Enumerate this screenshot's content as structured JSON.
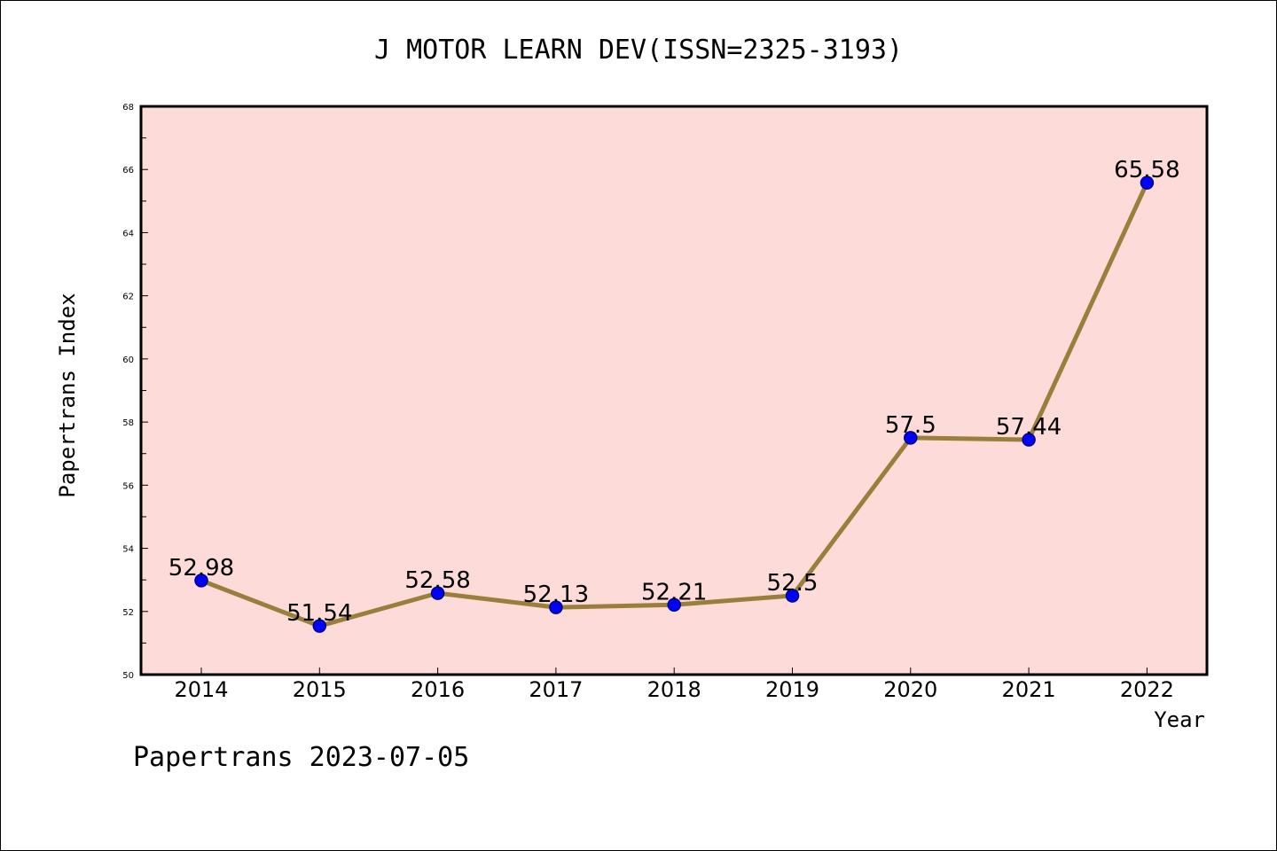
{
  "chart_data": {
    "type": "line",
    "title": "J MOTOR LEARN DEV(ISSN=2325-3193)",
    "xlabel": "Year",
    "ylabel": "Papertrans Index",
    "footer": "Papertrans 2023-07-05",
    "categories": [
      "2014",
      "2015",
      "2016",
      "2017",
      "2018",
      "2019",
      "2020",
      "2021",
      "2022"
    ],
    "data_labels": [
      "52.98",
      "51.54",
      "52.58",
      "52.13",
      "52.21",
      "52.5",
      "57.5",
      "57.44",
      "65.58"
    ],
    "values": [
      52.98,
      51.54,
      52.58,
      52.13,
      52.21,
      52.5,
      57.5,
      57.44,
      65.58
    ],
    "ylim": [
      50,
      68
    ],
    "yticks": [
      "50",
      "52",
      "54",
      "56",
      "58",
      "60",
      "62",
      "64",
      "66",
      "68"
    ],
    "grid": false,
    "colors": {
      "plot_background": "#fddbd8",
      "line": "#9a7f3c",
      "marker": "#0000ff",
      "marker_edge": "#000080"
    }
  }
}
